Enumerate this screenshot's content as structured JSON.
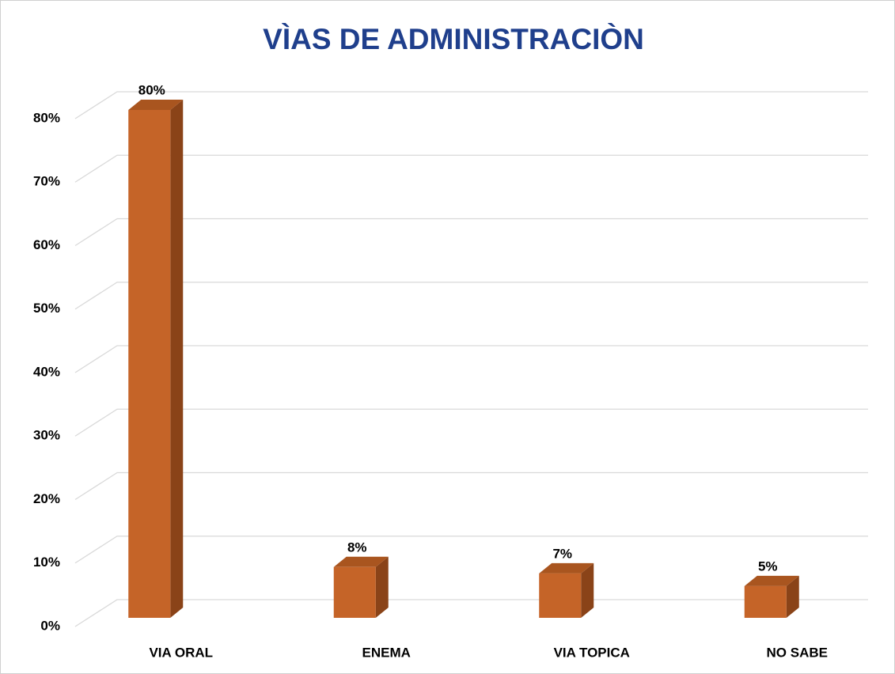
{
  "chart_data": {
    "type": "bar3d",
    "title": "VÌAS DE ADMINISTRACIÒN",
    "categories": [
      "VIA ORAL",
      "ENEMA",
      "VIA TOPICA",
      "NO SABE"
    ],
    "values": [
      80,
      8,
      7,
      5
    ],
    "value_labels": [
      "80%",
      "8%",
      "7%",
      "5%"
    ],
    "color": "#c56428",
    "ylim": [
      0,
      80
    ],
    "yticks": [
      {
        "value": 0,
        "label": "0%"
      },
      {
        "value": 10,
        "label": "10%"
      },
      {
        "value": 20,
        "label": "20%"
      },
      {
        "value": 30,
        "label": "30%"
      },
      {
        "value": 40,
        "label": "40%"
      },
      {
        "value": 50,
        "label": "50%"
      },
      {
        "value": 60,
        "label": "60%"
      },
      {
        "value": 70,
        "label": "70%"
      },
      {
        "value": 80,
        "label": "80%"
      }
    ],
    "grid": true
  }
}
